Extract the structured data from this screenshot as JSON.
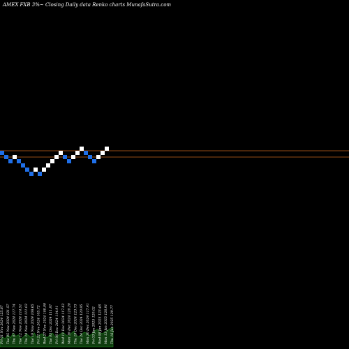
{
  "title": "AMEX  FXB  3%~  Closing  Daily  data  Renko  charts  MunafaSutra.com",
  "colors": {
    "background": "#000000",
    "up": "#ffffff",
    "down": "#1f6fe8",
    "level_line": "#c8641e",
    "volume": "#0f3d0f",
    "volume_edge": "#1e8c1e"
  },
  "chart_data": {
    "type": "renko",
    "title": "AMEX  FXB  3%~  Closing  Daily  data  Renko  charts  MunafaSutra.com",
    "bricks": [
      {
        "dir": "down",
        "level": 0
      },
      {
        "dir": "down",
        "level": -1
      },
      {
        "dir": "down",
        "level": -2
      },
      {
        "dir": "up",
        "level": -1
      },
      {
        "dir": "down",
        "level": -2
      },
      {
        "dir": "down",
        "level": -3
      },
      {
        "dir": "down",
        "level": -4
      },
      {
        "dir": "down",
        "level": -5
      },
      {
        "dir": "up",
        "level": -4
      },
      {
        "dir": "down",
        "level": -5
      },
      {
        "dir": "up",
        "level": -4
      },
      {
        "dir": "up",
        "level": -3
      },
      {
        "dir": "up",
        "level": -2
      },
      {
        "dir": "up",
        "level": -1
      },
      {
        "dir": "up",
        "level": 0
      },
      {
        "dir": "down",
        "level": -1
      },
      {
        "dir": "down",
        "level": -2
      },
      {
        "dir": "up",
        "level": -1
      },
      {
        "dir": "up",
        "level": 0
      },
      {
        "dir": "up",
        "level": 1
      },
      {
        "dir": "down",
        "level": 0
      },
      {
        "dir": "down",
        "level": -1
      },
      {
        "dir": "down",
        "level": -2
      },
      {
        "dir": "up",
        "level": -1
      },
      {
        "dir": "up",
        "level": 0
      },
      {
        "dir": "up",
        "level": 1
      }
    ],
    "level_lines": [
      1,
      -0.5
    ],
    "date_labels": [
      "Fri 01 Nov 2024 125.87",
      "Tue 05 Nov 2024 121.57",
      "Thu 07 Nov 2024 117.74",
      "Tue 12 Nov 2024 114.51",
      "Thu 14 Nov 2024 111.03",
      "Tue 19 Nov 2024 108.65",
      "Fri 22 Nov 2024 105.72",
      "Wed 27 Nov 2024 108.09",
      "Tue 03 Dec 2024 111.87",
      "Fri 06 Dec 2024 114.91",
      "Wed 11 Dec 2024 117.62",
      "Mon 16 Dec 2024 120.20",
      "Thu 19 Dec 2024 123.73",
      "Tue 24 Dec 2024 120.95",
      "Mon 30 Dec 2024 117.41",
      "Fri 03 Jan 2025 120.02",
      "Wed 08 Jan 2025 123.48",
      "Mon 13 Jan 2025 126.91",
      "Thu 16 Jan 2025 129.77"
    ],
    "volume": [
      0.35,
      0.5,
      0.42,
      0.6,
      0.48,
      0.7,
      0.55,
      0.62,
      0.4,
      0.52,
      0.66,
      0.58,
      0.45,
      0.72,
      0.5,
      0.6,
      0.68,
      0.54,
      0.47,
      0.63,
      0.71,
      0.5,
      0.58,
      0.66,
      0.74,
      0.62,
      0.55,
      0.69,
      0.8,
      0.6,
      0.52,
      0.64,
      0.75,
      0.7,
      0.58,
      0.66,
      0.82,
      0.9,
      0.72,
      0.68,
      0.78,
      0.85,
      0.95,
      1.0
    ]
  }
}
